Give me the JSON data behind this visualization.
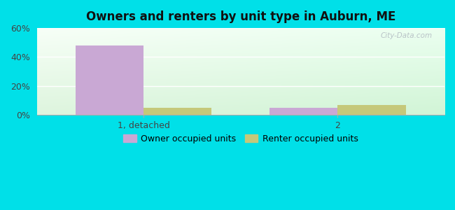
{
  "title": "Owners and renters by unit type in Auburn, ME",
  "groups": [
    "1, detached",
    "2"
  ],
  "owner_values": [
    48,
    5
  ],
  "renter_values": [
    5,
    7
  ],
  "owner_color": "#c9a8d4",
  "renter_color": "#c5c87a",
  "ylim": [
    0,
    60
  ],
  "yticks": [
    0,
    20,
    40,
    60
  ],
  "ytick_labels": [
    "0%",
    "20%",
    "40%",
    "60%"
  ],
  "bar_width": 0.35,
  "background_outer": "#00e0e8",
  "legend_owner": "Owner occupied units",
  "legend_renter": "Renter occupied units",
  "watermark": "City-Data.com",
  "xlim": [
    -0.55,
    1.55
  ],
  "group_positions": [
    0,
    1
  ]
}
